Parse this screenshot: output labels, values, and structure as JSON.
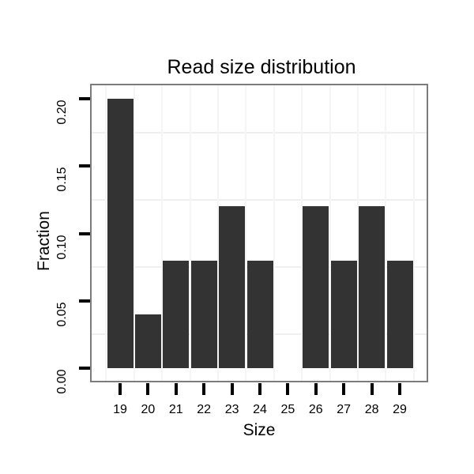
{
  "chart_data": {
    "type": "bar",
    "title": "Read size distribution",
    "xlabel": "Size",
    "ylabel": "Fraction",
    "categories": [
      "19",
      "20",
      "21",
      "22",
      "23",
      "24",
      "25",
      "26",
      "27",
      "28",
      "29"
    ],
    "values": [
      0.2,
      0.04,
      0.08,
      0.08,
      0.12,
      0.08,
      0.0,
      0.12,
      0.08,
      0.12,
      0.08
    ],
    "y_tick_labels": [
      "0.00",
      "0.05",
      "0.10",
      "0.15",
      "0.20"
    ],
    "y_tick_values": [
      0.0,
      0.05,
      0.1,
      0.15,
      0.2
    ],
    "y_minor_gridlines": [
      0.025,
      0.075,
      0.125,
      0.175
    ],
    "ylim": [
      0,
      0.21
    ],
    "grid": "minor-only",
    "legend": "none",
    "colors": {
      "bar": "#333333",
      "panel_border": "#7c7c7c",
      "tick": "#000000",
      "grid_horizontal": "#efefef",
      "grid_vertical": "#f5f5f5",
      "text": "#000000",
      "background": "#ffffff"
    }
  }
}
